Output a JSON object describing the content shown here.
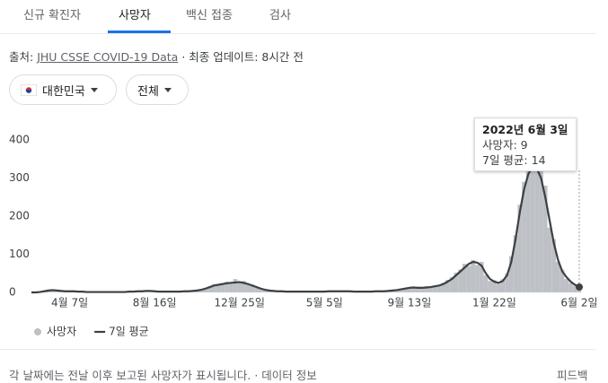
{
  "tabs": [
    "신규 확진자",
    "사망자",
    "백신 접종",
    "검사"
  ],
  "source": {
    "label": "출처:",
    "link": "JHU CSSE COVID-19 Data",
    "updated": "· 최종 업데이트: 8시간 전"
  },
  "filters": [
    "대한민국",
    "전체"
  ],
  "tooltip": {
    "date": "2022년 6월 3일",
    "lines": [
      "사망자: 9",
      "7일 평균: 14"
    ]
  },
  "footer": {
    "note": "각 날짜에는 전날 이후 보고된 사망자가 표시됩니다.",
    "sep": "·",
    "link": "데이터 정보",
    "feedback": "피드백"
  },
  "chart_data": {
    "type": "bar",
    "categories": [
      null,
      null,
      null,
      null,
      null,
      null,
      null,
      null,
      null,
      "4월 7일",
      null,
      null,
      null,
      null,
      null,
      null,
      null,
      null,
      null,
      null,
      null,
      null,
      null,
      null,
      null,
      null,
      null,
      null,
      null,
      "8월 16일",
      null,
      null,
      null,
      null,
      null,
      null,
      null,
      null,
      null,
      null,
      null,
      null,
      null,
      null,
      null,
      null,
      null,
      null,
      null,
      "12월 25일",
      null,
      null,
      null,
      null,
      null,
      null,
      null,
      null,
      null,
      null,
      null,
      null,
      null,
      null,
      null,
      null,
      null,
      null,
      null,
      "5월 5일",
      null,
      null,
      null,
      null,
      null,
      null,
      null,
      null,
      null,
      null,
      null,
      null,
      null,
      null,
      null,
      null,
      null,
      null,
      null,
      "9월 13일",
      null,
      null,
      null,
      null,
      null,
      null,
      null,
      null,
      null,
      null,
      null,
      null,
      null,
      null,
      null,
      null,
      null,
      null,
      null,
      "1월 22일",
      null,
      null,
      null,
      null,
      null,
      null,
      null,
      null,
      null,
      null,
      null,
      null,
      null,
      null,
      null,
      null,
      null,
      null,
      null,
      "6월 2일"
    ],
    "series": [
      {
        "name": "사망자",
        "type": "bar",
        "color": "#bdc1c6",
        "values": [
          0,
          0,
          2,
          4,
          7,
          8,
          5,
          3,
          2,
          4,
          2,
          3,
          1,
          2,
          0,
          1,
          2,
          1,
          0,
          2,
          1,
          0,
          2,
          1,
          3,
          4,
          2,
          5,
          3,
          4,
          1,
          3,
          2,
          1,
          3,
          2,
          4,
          2,
          5,
          6,
          9,
          12,
          16,
          22,
          19,
          25,
          28,
          22,
          35,
          24,
          30,
          20,
          21,
          12,
          9,
          8,
          4,
          5,
          2,
          4,
          1,
          3,
          2,
          1,
          3,
          2,
          1,
          3,
          2,
          2,
          4,
          3,
          2,
          4,
          3,
          2,
          3,
          1,
          2,
          3,
          2,
          2,
          4,
          3,
          5,
          4,
          7,
          9,
          11,
          14,
          12,
          15,
          10,
          16,
          13,
          18,
          20,
          25,
          33,
          40,
          52,
          60,
          75,
          70,
          85,
          72,
          80,
          45,
          30,
          32,
          22,
          35,
          50,
          95,
          150,
          230,
          290,
          340,
          390,
          360,
          320,
          280,
          170,
          140,
          80,
          60,
          35,
          25,
          18,
          9
        ]
      },
      {
        "name": "7일 평균",
        "type": "line",
        "color": "#3c4043",
        "values": [
          0,
          0,
          1,
          3,
          5,
          6,
          5,
          4,
          3,
          3,
          3,
          2,
          2,
          1,
          1,
          1,
          1,
          1,
          1,
          1,
          1,
          1,
          1,
          2,
          2,
          3,
          3,
          4,
          4,
          3,
          2,
          2,
          2,
          2,
          2,
          2,
          3,
          3,
          4,
          5,
          7,
          10,
          14,
          18,
          20,
          22,
          24,
          25,
          26,
          27,
          25,
          22,
          18,
          14,
          10,
          7,
          5,
          4,
          3,
          3,
          2,
          2,
          2,
          2,
          2,
          2,
          2,
          2,
          2,
          2,
          3,
          3,
          3,
          3,
          3,
          3,
          2,
          2,
          2,
          2,
          2,
          3,
          3,
          3,
          4,
          5,
          6,
          8,
          10,
          12,
          13,
          12,
          12,
          13,
          14,
          16,
          18,
          22,
          28,
          35,
          45,
          55,
          65,
          75,
          80,
          78,
          70,
          50,
          35,
          28,
          25,
          30,
          45,
          80,
          140,
          210,
          270,
          310,
          330,
          325,
          300,
          250,
          190,
          130,
          85,
          55,
          40,
          28,
          20,
          14
        ]
      }
    ],
    "ylim": [
      0,
      400
    ],
    "yticks": [
      0,
      100,
      200,
      300,
      400
    ],
    "grid": false
  }
}
